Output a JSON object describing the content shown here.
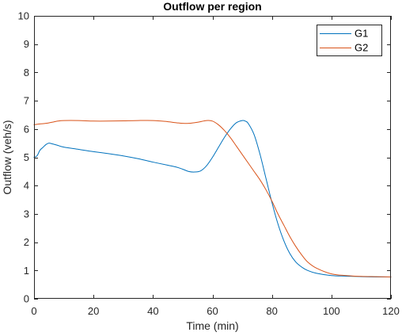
{
  "chart_data": {
    "type": "line",
    "title": "Outflow per region",
    "xlabel": "Time (min)",
    "ylabel": "Outflow (veh/s)",
    "xlim": [
      0,
      120
    ],
    "ylim": [
      0,
      10
    ],
    "xticks": [
      0,
      20,
      40,
      60,
      80,
      100,
      120
    ],
    "yticks": [
      0,
      1,
      2,
      3,
      4,
      5,
      6,
      7,
      8,
      9,
      10
    ],
    "grid": false,
    "legend_position": "top-right",
    "series": [
      {
        "name": "G1",
        "color": "#0072BD",
        "x": [
          0,
          1,
          2,
          3,
          4,
          5,
          6,
          8,
          10,
          15,
          20,
          25,
          30,
          35,
          40,
          45,
          48,
          50,
          52,
          54,
          56,
          58,
          60,
          62,
          64,
          66,
          68,
          70,
          71,
          72,
          74,
          76,
          78,
          80,
          82,
          84,
          86,
          88,
          90,
          92,
          95,
          100,
          105,
          110,
          115,
          120
        ],
        "y": [
          5.0,
          5.05,
          5.25,
          5.35,
          5.45,
          5.5,
          5.48,
          5.42,
          5.36,
          5.28,
          5.2,
          5.13,
          5.05,
          4.95,
          4.83,
          4.72,
          4.65,
          4.58,
          4.5,
          4.48,
          4.52,
          4.7,
          5.0,
          5.35,
          5.7,
          6.0,
          6.22,
          6.3,
          6.28,
          6.2,
          5.8,
          5.1,
          4.25,
          3.4,
          2.65,
          2.05,
          1.6,
          1.3,
          1.12,
          1.0,
          0.9,
          0.82,
          0.8,
          0.78,
          0.77,
          0.77
        ]
      },
      {
        "name": "G2",
        "color": "#D95319",
        "x": [
          0,
          2,
          4,
          6,
          8,
          10,
          15,
          20,
          25,
          30,
          35,
          40,
          44,
          48,
          50,
          52,
          55,
          58,
          60,
          62,
          64,
          66,
          68,
          70,
          72,
          74,
          76,
          78,
          80,
          82,
          84,
          86,
          88,
          90,
          92,
          95,
          100,
          105,
          110,
          115,
          120
        ],
        "y": [
          6.15,
          6.18,
          6.2,
          6.24,
          6.28,
          6.3,
          6.3,
          6.28,
          6.28,
          6.29,
          6.3,
          6.3,
          6.27,
          6.22,
          6.2,
          6.2,
          6.24,
          6.3,
          6.28,
          6.15,
          5.95,
          5.7,
          5.4,
          5.1,
          4.8,
          4.5,
          4.2,
          3.85,
          3.45,
          3.0,
          2.6,
          2.2,
          1.85,
          1.55,
          1.3,
          1.08,
          0.88,
          0.82,
          0.79,
          0.78,
          0.77
        ]
      }
    ]
  }
}
